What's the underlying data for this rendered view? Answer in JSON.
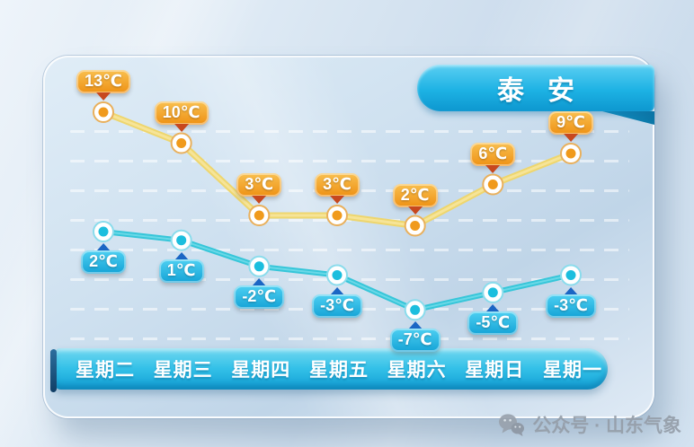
{
  "header": {
    "city": "泰安"
  },
  "watermark": {
    "label": "公众号 · 山东气象",
    "icon": "wechat-icon"
  },
  "chart_data": {
    "type": "line",
    "title": "泰安",
    "categories": [
      "星期二",
      "星期三",
      "星期四",
      "星期五",
      "星期六",
      "星期日",
      "星期一"
    ],
    "unit": "℃",
    "grid": "dashed-horizontal",
    "legend": "none",
    "series": [
      {
        "name": "high",
        "values": [
          13,
          10,
          3,
          3,
          2,
          6,
          9
        ],
        "labels": [
          "13℃",
          "10℃",
          "3℃",
          "3℃",
          "2℃",
          "6℃",
          "9℃"
        ],
        "colors": {
          "line": "#eed66e",
          "line_highlight": "#f9e9a8",
          "point": "#f09a1c",
          "point_ring": "#e9b05c",
          "badge_top": "#f9c050",
          "badge_bottom": "#ee9114",
          "arrow": "#c7481f"
        }
      },
      {
        "name": "low",
        "values": [
          2,
          1,
          -2,
          -3,
          -7,
          -5,
          -3
        ],
        "labels": [
          "2℃",
          "1℃",
          "-2℃",
          "-3℃",
          "-7℃",
          "-5℃",
          "-3℃"
        ],
        "colors": {
          "line": "#36c6d9",
          "line_highlight": "#7fe0ec",
          "point": "#1bbede",
          "point_ring": "#8adcec",
          "badge_top": "#4ed0f2",
          "badge_bottom": "#14a3d6",
          "arrow": "#1b66c4"
        }
      }
    ]
  }
}
